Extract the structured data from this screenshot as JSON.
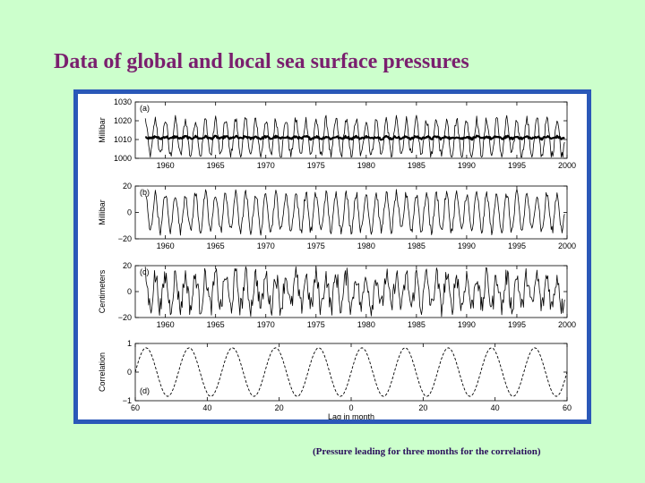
{
  "slide": {
    "title": "Data of global and local sea surface pressures",
    "caption": "(Pressure leading for three months for the correlation)",
    "frame_color": "#2a58b8",
    "background": "#ccffcc",
    "title_color": "#7a1f6e"
  },
  "chart_data": [
    {
      "type": "line",
      "panel_label": "(a)",
      "ylabel": "Millibar",
      "xlim": [
        1957,
        2000
      ],
      "ylim": [
        1000,
        1030
      ],
      "yticks": [
        1000,
        1010,
        1020,
        1030
      ],
      "xticks": [
        1960,
        1965,
        1970,
        1975,
        1980,
        1985,
        1990,
        1995,
        2000
      ],
      "series": [
        {
          "style": "thin",
          "kind": "seasonal",
          "mean": 1011,
          "amplitude": 9.5,
          "period": 1.0,
          "noise": 2.5
        },
        {
          "style": "thick",
          "kind": "flat",
          "mean": 1011,
          "amplitude": 0.5,
          "period": 1.0,
          "noise": 0.6
        }
      ]
    },
    {
      "type": "line",
      "panel_label": "(b)",
      "ylabel": "Millibar",
      "xlim": [
        1957,
        2000
      ],
      "ylim": [
        -20,
        20
      ],
      "yticks": [
        -20,
        0,
        20
      ],
      "xticks": [
        1960,
        1965,
        1970,
        1975,
        1980,
        1985,
        1990,
        1995,
        2000
      ],
      "series": [
        {
          "style": "thin",
          "kind": "seasonal",
          "mean": 0,
          "amplitude": 14,
          "period": 1.0,
          "noise": 3.5
        }
      ]
    },
    {
      "type": "line",
      "panel_label": "(c)",
      "ylabel": "Centimeters",
      "xlim": [
        1957,
        2000
      ],
      "ylim": [
        -20,
        20
      ],
      "yticks": [
        -20,
        0,
        20
      ],
      "xticks": [
        1960,
        1965,
        1970,
        1975,
        1980,
        1985,
        1990,
        1995,
        2000
      ],
      "series": [
        {
          "style": "thin",
          "kind": "seasonal",
          "mean": 0,
          "amplitude": 12,
          "period": 1.0,
          "noise": 8
        }
      ]
    },
    {
      "type": "line",
      "panel_label": "(d)",
      "ylabel": "Correlation",
      "xlabel": "Lag in month",
      "xlim": [
        -60,
        60
      ],
      "ylim": [
        -1,
        1
      ],
      "yticks": [
        -1,
        0,
        1
      ],
      "xticks": [
        -60,
        -40,
        -20,
        0,
        20,
        40,
        60
      ],
      "xticklabels": [
        "60",
        "40",
        "20",
        "0",
        "20",
        "40",
        "60"
      ],
      "series": [
        {
          "style": "dashed",
          "kind": "cosine",
          "amplitude": 0.85,
          "period_months": 12,
          "phase_months": 3
        }
      ]
    }
  ]
}
